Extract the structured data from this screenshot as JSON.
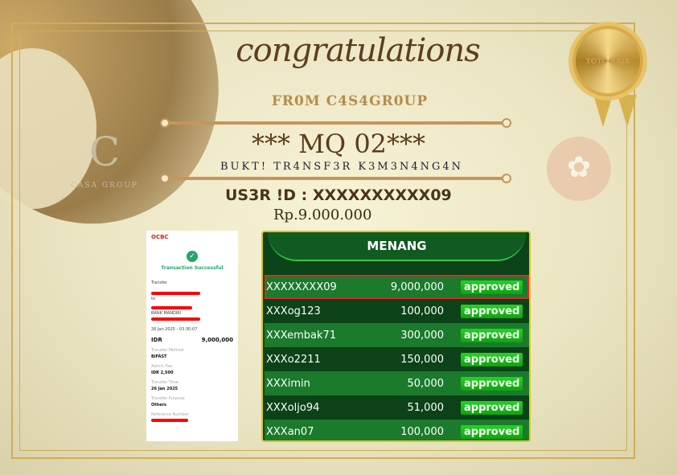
{
  "title": "congratulations",
  "from": "FR0M C4S4GR0UP",
  "code": "*** MQ 02***",
  "subtitle": "BUKT! TR4NSF3R K3M3N4NG4N",
  "user_id": "US3R !D : XXXXXXXXXX09",
  "amount": "Rp.9.000.000",
  "medal_text": "TOTO RAJA",
  "watermark": {
    "initial": "C",
    "name": "CASA GROUP"
  },
  "receipt": {
    "bank": "OCBC",
    "status": "Transaction Successful",
    "transfer_label": "Transfer",
    "to": "to",
    "bank_name": "BANK MANDIRI",
    "datetime": "26 Jan 2025 - 03:30:07",
    "currency": "IDR",
    "value": "9,000,000",
    "fields": [
      {
        "label": "Transfer Method",
        "value": "BIFAST"
      },
      {
        "label": "Admin Fee",
        "value": "IDR 2,500"
      },
      {
        "label": "Transfer Time",
        "value": "26 Jan 2025"
      },
      {
        "label": "Transfer Purpose",
        "value": "Others"
      },
      {
        "label": "Reference Number",
        "value": ""
      }
    ]
  },
  "table": {
    "header": "MENANG",
    "rows": [
      {
        "user": "XXXXXXXX09",
        "amount": "9,000,000",
        "status": "approved"
      },
      {
        "user": "XXXog123",
        "amount": "100,000",
        "status": "approved"
      },
      {
        "user": "XXXembak71",
        "amount": "300,000",
        "status": "approved"
      },
      {
        "user": "XXXo2211",
        "amount": "150,000",
        "status": "approved"
      },
      {
        "user": "XXXimin",
        "amount": "50,000",
        "status": "approved"
      },
      {
        "user": "XXXoljo94",
        "amount": "51,000",
        "status": "approved"
      },
      {
        "user": "XXXan07",
        "amount": "100,000",
        "status": "approved"
      }
    ]
  }
}
